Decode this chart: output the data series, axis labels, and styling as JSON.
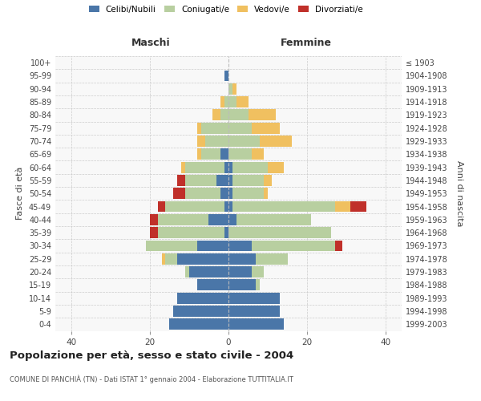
{
  "age_groups": [
    "0-4",
    "5-9",
    "10-14",
    "15-19",
    "20-24",
    "25-29",
    "30-34",
    "35-39",
    "40-44",
    "45-49",
    "50-54",
    "55-59",
    "60-64",
    "65-69",
    "70-74",
    "75-79",
    "80-84",
    "85-89",
    "90-94",
    "95-99",
    "100+"
  ],
  "birth_years": [
    "1999-2003",
    "1994-1998",
    "1989-1993",
    "1984-1988",
    "1979-1983",
    "1974-1978",
    "1969-1973",
    "1964-1968",
    "1959-1963",
    "1954-1958",
    "1949-1953",
    "1944-1948",
    "1939-1943",
    "1934-1938",
    "1929-1933",
    "1924-1928",
    "1919-1923",
    "1914-1918",
    "1909-1913",
    "1904-1908",
    "≤ 1903"
  ],
  "maschi": {
    "celibi": [
      15,
      14,
      13,
      8,
      10,
      13,
      8,
      1,
      5,
      1,
      2,
      3,
      1,
      2,
      0,
      0,
      0,
      0,
      0,
      1,
      0
    ],
    "coniugati": [
      0,
      0,
      0,
      0,
      1,
      3,
      13,
      17,
      13,
      15,
      9,
      8,
      10,
      5,
      6,
      7,
      2,
      1,
      0,
      0,
      0
    ],
    "vedovi": [
      0,
      0,
      0,
      0,
      0,
      1,
      0,
      0,
      0,
      0,
      0,
      0,
      1,
      1,
      2,
      1,
      2,
      1,
      0,
      0,
      0
    ],
    "divorziati": [
      0,
      0,
      0,
      0,
      0,
      0,
      0,
      2,
      2,
      2,
      3,
      2,
      0,
      0,
      0,
      0,
      0,
      0,
      0,
      0,
      0
    ]
  },
  "femmine": {
    "nubili": [
      14,
      13,
      13,
      7,
      6,
      7,
      6,
      0,
      2,
      1,
      1,
      1,
      1,
      0,
      0,
      0,
      0,
      0,
      0,
      0,
      0
    ],
    "coniugate": [
      0,
      0,
      0,
      1,
      3,
      8,
      21,
      26,
      19,
      26,
      8,
      8,
      9,
      6,
      8,
      6,
      5,
      2,
      1,
      0,
      0
    ],
    "vedove": [
      0,
      0,
      0,
      0,
      0,
      0,
      0,
      0,
      0,
      4,
      1,
      2,
      4,
      3,
      8,
      7,
      7,
      3,
      1,
      0,
      0
    ],
    "divorziate": [
      0,
      0,
      0,
      0,
      0,
      0,
      2,
      0,
      0,
      4,
      0,
      0,
      0,
      0,
      0,
      0,
      0,
      0,
      0,
      0,
      0
    ]
  },
  "colors": {
    "celibi": "#4a76a8",
    "coniugati": "#b8cfa0",
    "vedovi": "#f0c060",
    "divorziati": "#c0302a"
  },
  "title": "Popolazione per età, sesso e stato civile - 2004",
  "subtitle": "COMUNE DI PANCHIÀ (TN) - Dati ISTAT 1° gennaio 2004 - Elaborazione TUTTITALIA.IT",
  "xlabel_left": "Maschi",
  "xlabel_right": "Femmine",
  "ylabel_left": "Fasce di età",
  "ylabel_right": "Anni di nascita",
  "legend_labels": [
    "Celibi/Nubili",
    "Coniugati/e",
    "Vedovi/e",
    "Divorziati/e"
  ],
  "xlim": 44,
  "bg_color": "#f8f8f8",
  "grid_color": "#cccccc"
}
